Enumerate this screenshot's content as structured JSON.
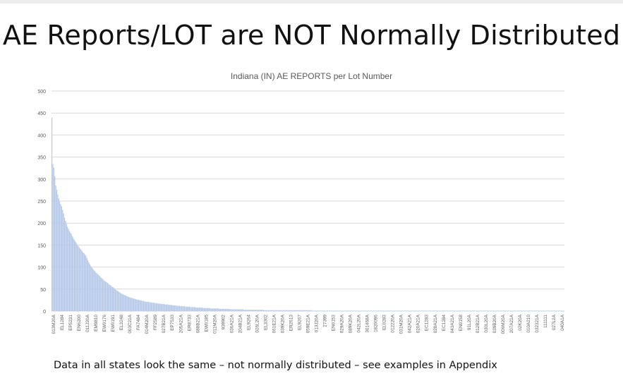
{
  "slide": {
    "title": "AE Reports/LOT are NOT Normally Distributed",
    "footer_note": "Data in all states look the same – not normally distributed – see examples in Appendix"
  },
  "colors": {
    "bar": "#b4c7e7",
    "bar_outline": "#8eaadb",
    "grid": "#d9d9d9",
    "axis_text": "#595959"
  },
  "chart_data": {
    "type": "bar",
    "title": "Indiana (IN) AE REPORTS per Lot Number",
    "xlabel": "",
    "ylabel": "",
    "ylim": [
      0,
      500
    ],
    "yticks": [
      0,
      50,
      100,
      150,
      200,
      250,
      300,
      350,
      400,
      450,
      500
    ],
    "grid": true,
    "legend": "none",
    "tick_labels": [
      "013M20A",
      "EL1284",
      "EP5231",
      "EN6200",
      "011J20A",
      "EM9810",
      "EW0176",
      "EW0191",
      "EL3248",
      "003C21A",
      "FA7484",
      "014M20A",
      "FF2589",
      "027B21A",
      "EP7533",
      "205A21A",
      "ER8733",
      "088B21A",
      "EW0185",
      "011M20A",
      "939902",
      "036A21A",
      "204B21A",
      "EL9264",
      "026L20A",
      "EL3302",
      "061E21A",
      "039K20A",
      "ER2613",
      "EL9267",
      "059E21A",
      "013J20A",
      "27399",
      "EN0153",
      "029A20A",
      "089K20A",
      "042L20A",
      "301468A",
      "1820096",
      "EL0283",
      "012220A",
      "031M20A",
      "042A21A",
      "020A21A",
      "EC1283",
      "028A21A",
      "EC1284",
      "043A21A",
      "EN0158",
      "91L20A",
      "012B21A",
      "030L20A",
      "039B20A",
      "006M20A",
      "207A21A",
      "02K20A",
      "010A210",
      "032321A",
      "111111",
      "027L2A",
      "040A1A"
    ],
    "values": [
      440,
      334,
      326,
      306,
      285,
      276,
      265,
      256,
      249,
      243,
      238,
      230,
      222,
      212,
      205,
      198,
      192,
      187,
      182,
      178,
      175,
      170,
      166,
      162,
      158,
      155,
      151,
      148,
      145,
      142,
      139,
      136,
      133,
      131,
      128,
      125,
      120,
      115,
      110,
      106,
      102,
      99,
      96,
      93,
      91,
      88,
      86,
      84,
      82,
      80,
      77,
      75,
      73,
      71,
      69,
      67,
      66,
      64,
      62,
      60,
      59,
      57,
      55,
      54,
      52,
      50,
      48,
      46,
      45,
      43,
      42,
      40,
      39,
      38,
      37,
      36,
      35,
      34,
      33,
      32,
      31,
      30,
      30,
      29,
      28,
      28,
      27,
      26,
      26,
      25,
      25,
      24,
      24,
      23,
      23,
      22,
      22,
      21,
      21,
      21,
      20,
      20,
      20,
      19,
      19,
      19,
      18,
      18,
      18,
      17,
      17,
      17,
      16,
      16,
      16,
      16,
      15,
      15,
      15,
      15,
      14,
      14,
      14,
      14,
      13,
      13,
      13,
      13,
      12,
      12,
      12,
      12,
      11,
      11,
      11,
      11,
      11,
      10,
      10,
      10,
      10,
      10,
      9,
      9,
      9,
      9,
      9,
      9,
      8,
      8,
      8,
      8,
      8,
      8,
      8,
      7,
      7,
      7,
      7,
      7,
      7,
      7,
      7,
      6,
      6,
      6,
      6,
      6,
      6,
      6,
      6,
      6,
      5,
      5,
      5,
      5,
      5,
      5,
      5,
      5,
      5,
      5,
      5,
      4,
      4,
      4,
      4,
      4,
      4,
      4,
      4,
      4,
      4,
      4,
      4,
      4,
      4,
      3,
      3,
      3,
      3,
      3,
      3,
      3,
      3,
      3,
      3,
      3,
      3,
      3,
      3,
      3,
      3,
      3,
      3,
      3,
      3,
      2,
      2,
      2,
      2,
      2,
      2,
      2,
      2,
      2,
      2,
      2,
      2,
      2,
      2,
      2,
      2,
      2,
      2,
      2,
      2,
      2,
      2,
      2,
      2,
      2,
      2,
      2,
      2,
      2,
      2,
      2,
      2,
      2,
      2,
      2,
      2,
      2,
      2,
      2,
      2,
      2,
      2,
      2,
      2,
      2,
      2,
      2,
      2,
      2,
      2,
      1,
      1,
      1,
      1,
      1,
      1,
      1,
      1,
      1,
      1,
      1,
      1,
      1,
      1,
      1,
      1,
      1,
      1,
      1,
      1,
      1,
      1,
      1,
      1,
      1,
      1,
      1,
      1,
      1,
      1,
      1,
      1,
      1,
      1,
      1,
      1,
      1,
      1,
      1,
      1,
      1,
      1,
      1,
      1,
      1,
      1,
      1,
      1,
      1,
      1,
      1,
      1,
      1,
      1,
      1,
      1,
      1,
      1,
      1,
      1,
      1,
      1,
      1,
      1,
      1,
      1,
      1,
      1,
      1,
      1,
      1,
      1,
      1,
      1,
      1,
      1,
      1,
      1,
      1,
      1,
      1,
      1,
      1,
      1,
      1,
      1,
      1,
      1,
      1,
      1,
      1,
      1,
      1,
      1,
      1,
      1,
      1,
      1,
      1,
      1,
      1,
      1,
      1,
      1,
      1,
      1,
      1,
      1,
      1,
      1,
      1,
      1,
      1,
      1,
      1,
      1,
      1,
      1,
      1,
      1,
      1,
      1,
      1,
      1,
      1,
      1,
      1,
      1,
      1,
      1,
      1,
      1,
      1,
      1,
      1,
      1,
      1,
      1,
      1,
      1,
      1,
      1,
      1,
      1,
      1,
      1,
      1,
      1,
      1,
      1,
      1,
      1,
      1,
      1,
      1,
      1,
      1,
      1,
      1,
      1,
      1,
      1,
      1,
      1,
      1,
      1,
      1,
      1,
      1,
      1,
      1,
      1,
      1,
      1,
      1,
      1,
      1,
      1,
      1,
      1,
      1,
      1,
      1,
      1,
      1,
      1,
      1,
      1,
      1,
      1,
      1,
      1,
      1,
      1,
      1,
      1,
      1,
      1,
      1,
      1,
      1,
      1,
      1,
      1,
      1,
      1,
      1,
      1,
      1,
      1,
      1,
      1,
      1,
      1,
      1,
      1,
      1,
      1,
      1,
      1,
      1,
      1,
      1,
      1,
      1,
      1,
      1,
      1,
      1,
      1,
      1,
      1,
      1,
      1,
      1,
      1,
      1,
      1,
      1,
      1,
      1,
      1,
      1,
      1,
      1,
      1,
      1,
      1,
      1,
      1,
      1,
      1,
      1,
      1,
      1,
      1,
      1,
      1,
      1
    ]
  }
}
